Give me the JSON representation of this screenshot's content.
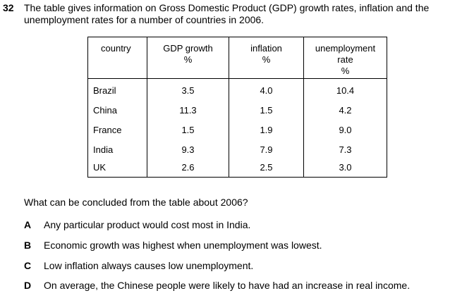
{
  "question": {
    "number": "32",
    "stem_line1": "The table gives information on Gross Domestic Product (GDP) growth rates, inflation and the",
    "stem_line2": "unemployment rates for a number of countries in 2006.",
    "prompt": "What can be concluded from the table about 2006?"
  },
  "table": {
    "headers": [
      {
        "lines": [
          "country"
        ]
      },
      {
        "lines": [
          "GDP growth",
          "%"
        ]
      },
      {
        "lines": [
          "inflation",
          "%"
        ]
      },
      {
        "lines": [
          "unemployment",
          "rate",
          "%"
        ]
      }
    ],
    "rows": [
      {
        "country": "Brazil",
        "gdp": "3.5",
        "inflation": "4.0",
        "unemployment": "10.4"
      },
      {
        "country": "China",
        "gdp": "11.3",
        "inflation": "1.5",
        "unemployment": "4.2"
      },
      {
        "country": "France",
        "gdp": "1.5",
        "inflation": "1.9",
        "unemployment": "9.0"
      },
      {
        "country": "India",
        "gdp": "9.3",
        "inflation": "7.9",
        "unemployment": "7.3"
      },
      {
        "country": "UK",
        "gdp": "2.6",
        "inflation": "2.5",
        "unemployment": "3.0"
      }
    ]
  },
  "options": [
    {
      "letter": "A",
      "text": "Any particular product would cost most in India."
    },
    {
      "letter": "B",
      "text": "Economic growth was highest when unemployment was lowest."
    },
    {
      "letter": "C",
      "text": "Low inflation always causes low unemployment."
    },
    {
      "letter": "D",
      "text": "On average, the Chinese people were likely to have had an increase in real income."
    }
  ]
}
